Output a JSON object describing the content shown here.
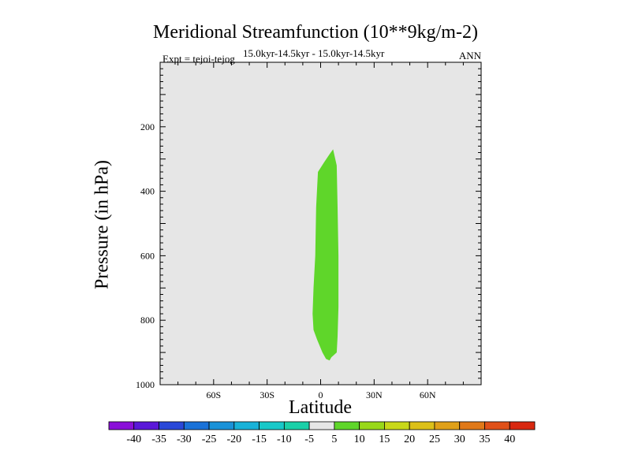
{
  "header": {
    "title": "Meridional Streamfunction (10**9kg/m-2)",
    "subtitle": "15.0kyr-14.5kyr - 15.0kyr-14.5kyr",
    "left_label": "Expt = tejoi-tejog",
    "right_label": "ANN"
  },
  "chart_data": {
    "type": "contour",
    "title": "Meridional Streamfunction (10**9kg/m-2)",
    "xlabel": "Latitude",
    "ylabel": "Pressure (in hPa)",
    "xlim": [
      -90,
      90
    ],
    "ylim": [
      1000,
      0
    ],
    "x_ticks": [
      {
        "value": -60,
        "label": "60S"
      },
      {
        "value": -30,
        "label": "30S"
      },
      {
        "value": 0,
        "label": "0"
      },
      {
        "value": 30,
        "label": "30N"
      },
      {
        "value": 60,
        "label": "60N"
      }
    ],
    "y_ticks": [
      {
        "value": 200,
        "label": "200"
      },
      {
        "value": 400,
        "label": "400"
      },
      {
        "value": 600,
        "label": "600"
      },
      {
        "value": 800,
        "label": "800"
      },
      {
        "value": 1000,
        "label": "1000"
      }
    ],
    "background_color": "#e6e6e6",
    "filled_regions": [
      {
        "level_range": [
          5,
          10
        ],
        "color": "#5fd62a",
        "outline": [
          [
            7,
            270
          ],
          [
            9,
            320
          ],
          [
            9.5,
            450
          ],
          [
            10,
            600
          ],
          [
            10,
            760
          ],
          [
            9.5,
            850
          ],
          [
            9,
            900
          ],
          [
            6,
            915
          ],
          [
            5,
            925
          ],
          [
            3,
            920
          ],
          [
            1,
            900
          ],
          [
            -2,
            860
          ],
          [
            -4,
            830
          ],
          [
            -4.5,
            780
          ],
          [
            -4,
            700
          ],
          [
            -3,
            600
          ],
          [
            -2.5,
            450
          ],
          [
            -1.5,
            340
          ],
          [
            2,
            310
          ],
          [
            5,
            285
          ],
          [
            7,
            270
          ]
        ]
      }
    ],
    "colorbar": {
      "labels": [
        "-40",
        "-35",
        "-30",
        "-25",
        "-20",
        "-15",
        "-10",
        "-5",
        "5",
        "10",
        "15",
        "20",
        "25",
        "30",
        "35",
        "40"
      ],
      "colors": [
        "#8a10d8",
        "#5a18d8",
        "#2a48d8",
        "#1a72d8",
        "#1a92d8",
        "#18b2d8",
        "#18c8c8",
        "#1ad0a8",
        "#e6e6e6",
        "#5fd62a",
        "#98d818",
        "#c8d818",
        "#dcc018",
        "#e0a018",
        "#e07818",
        "#e05018",
        "#d82810"
      ]
    }
  }
}
